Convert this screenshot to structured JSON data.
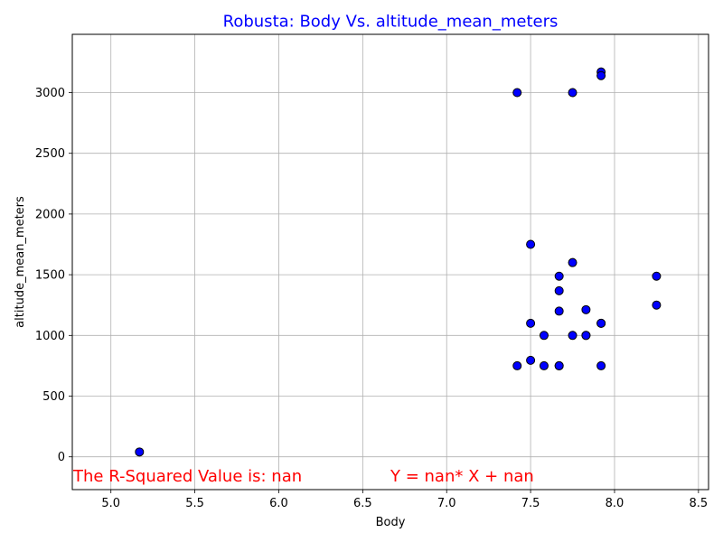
{
  "chart_data": {
    "type": "scatter",
    "title": "Robusta: Body Vs. altitude_mean_meters",
    "xlabel": "Body",
    "ylabel": "altitude_mean_meters",
    "xlim": [
      4.77,
      8.56
    ],
    "ylim": [
      -270,
      3480
    ],
    "x_ticks": [
      "5.0",
      "5.5",
      "6.0",
      "6.5",
      "7.0",
      "7.5",
      "8.0",
      "8.5"
    ],
    "y_ticks": [
      "0",
      "500",
      "1000",
      "1500",
      "2000",
      "2500",
      "3000"
    ],
    "grid": true,
    "points": [
      {
        "x": 5.17,
        "y": 40
      },
      {
        "x": 7.42,
        "y": 3000
      },
      {
        "x": 7.42,
        "y": 750
      },
      {
        "x": 7.5,
        "y": 1750
      },
      {
        "x": 7.5,
        "y": 1100
      },
      {
        "x": 7.5,
        "y": 795
      },
      {
        "x": 7.58,
        "y": 1000
      },
      {
        "x": 7.58,
        "y": 750
      },
      {
        "x": 7.67,
        "y": 1488
      },
      {
        "x": 7.67,
        "y": 1368
      },
      {
        "x": 7.67,
        "y": 1200
      },
      {
        "x": 7.67,
        "y": 750
      },
      {
        "x": 7.67,
        "y": 750
      },
      {
        "x": 7.75,
        "y": 3000
      },
      {
        "x": 7.75,
        "y": 1600
      },
      {
        "x": 7.75,
        "y": 1000
      },
      {
        "x": 7.83,
        "y": 1212
      },
      {
        "x": 7.83,
        "y": 1000
      },
      {
        "x": 7.83,
        "y": 1000
      },
      {
        "x": 7.92,
        "y": 3170
      },
      {
        "x": 7.92,
        "y": 3140
      },
      {
        "x": 7.92,
        "y": 1100
      },
      {
        "x": 7.92,
        "y": 1100
      },
      {
        "x": 7.92,
        "y": 750
      },
      {
        "x": 8.25,
        "y": 1488
      },
      {
        "x": 8.25,
        "y": 1250
      }
    ],
    "annotations": {
      "r_squared": "The R-Squared Value is: nan",
      "equation": "Y = nan* X + nan"
    },
    "colors": {
      "marker_fill": "#0000ff",
      "marker_edge": "#000000",
      "title": "#0000ff",
      "annotation": "#ff0000"
    }
  }
}
